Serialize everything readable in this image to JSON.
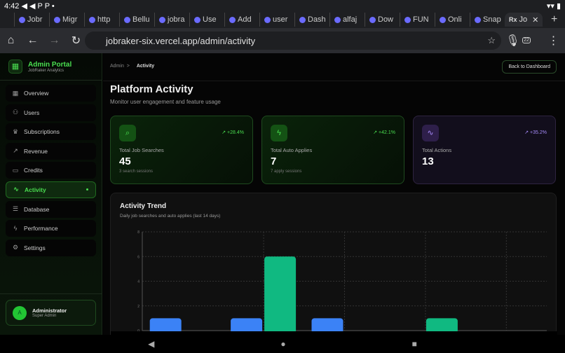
{
  "status": {
    "time": "4:42",
    "icons": "◀ ◀ P P •",
    "right": "▾▾ ▮"
  },
  "browser": {
    "tabs": [
      "Jobr",
      "Migr",
      "http",
      "Bellu",
      "jobra",
      "Use",
      "Add",
      "user",
      "Dash",
      "alfaj",
      "Dow",
      "FUN",
      "Onli",
      "Snap"
    ],
    "active_tab": "Jo",
    "url": "jobraker-six.vercel.app/admin/activity",
    "tab_count": "22"
  },
  "sidebar": {
    "title": "Admin Portal",
    "subtitle": "JobRaker Analytics",
    "items": [
      {
        "label": "Overview",
        "icon": "▦"
      },
      {
        "label": "Users",
        "icon": "⚇"
      },
      {
        "label": "Subscriptions",
        "icon": "♛"
      },
      {
        "label": "Revenue",
        "icon": "↗"
      },
      {
        "label": "Credits",
        "icon": "▭"
      },
      {
        "label": "Activity",
        "icon": "∿"
      },
      {
        "label": "Database",
        "icon": "☰"
      },
      {
        "label": "Performance",
        "icon": "ϟ"
      },
      {
        "label": "Settings",
        "icon": "⚙"
      }
    ],
    "active": "Activity",
    "user": {
      "initial": "A",
      "name": "Administrator",
      "role": "Super Admin"
    }
  },
  "header": {
    "breadcrumb_root": "Admin",
    "breadcrumb_sep": ">",
    "breadcrumb_current": "Activity",
    "back_button": "Back to Dashboard"
  },
  "page": {
    "title": "Platform Activity",
    "subtitle": "Monitor user engagement and feature usage"
  },
  "cards": [
    {
      "label": "Total Job Searches",
      "value": "45",
      "sub": "3 search sessions",
      "change": "↗ +28.4%",
      "icon": "search-icon"
    },
    {
      "label": "Total Auto Applies",
      "value": "7",
      "sub": "7 apply sessions",
      "change": "↗ +42.1%",
      "icon": "zap-icon"
    },
    {
      "label": "Total Actions",
      "value": "13",
      "change": "↗ +35.2%",
      "icon": "activity-icon"
    }
  ],
  "chart_data": {
    "type": "bar",
    "title": "Activity Trend",
    "subtitle": "Daily job searches and auto applies (last 14 days)",
    "categories": [
      "",
      "",
      "",
      "",
      ""
    ],
    "series": [
      {
        "values": [
          1,
          1,
          1,
          0,
          0
        ],
        "color": "#3b82f6"
      },
      {
        "values": [
          0,
          6,
          0,
          1,
          0
        ],
        "color": "#10b981"
      }
    ],
    "ylim": [
      0,
      8
    ],
    "yticks": [
      0,
      2,
      4,
      6,
      8
    ],
    "grid": true
  }
}
